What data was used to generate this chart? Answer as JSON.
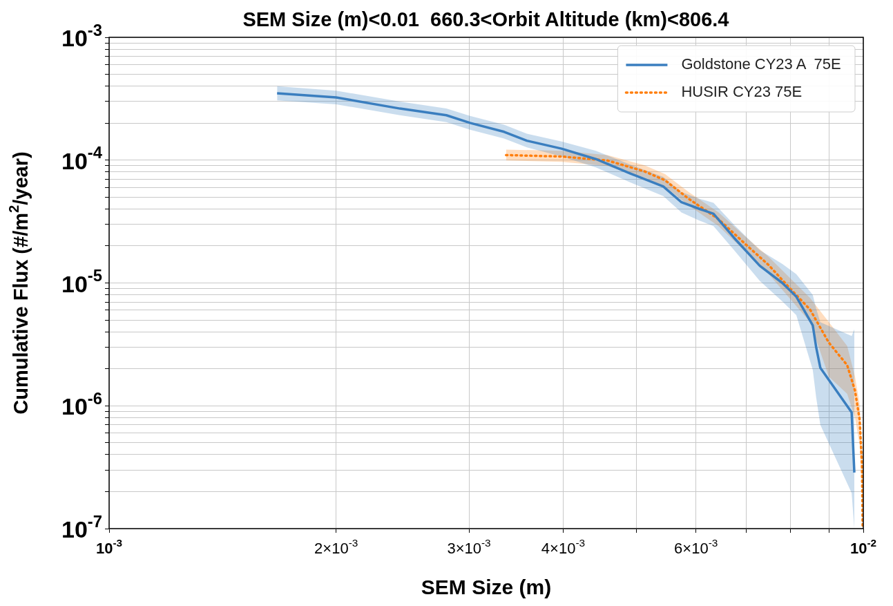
{
  "chart_data": {
    "type": "line",
    "title": "SEM Size (m)<0.01  660.3<Orbit Altitude (km)<806.4",
    "xlabel": "SEM Size (m)",
    "ylabel": "Cumulative Flux (#/m$^{2}$/year)",
    "log": "xy",
    "grid": true,
    "legend": "top right",
    "xlim": [
      0.001,
      0.01
    ],
    "ylim": [
      1e-07,
      0.001
    ],
    "xticks": [
      {
        "value": 0.001,
        "label": "10$^{-3}$"
      },
      {
        "value": 0.002,
        "label": "2×10$^{-3}$"
      },
      {
        "value": 0.003,
        "label": "3×10$^{-3}$"
      },
      {
        "value": 0.004,
        "label": "4×10$^{-3}$"
      },
      {
        "value": 0.005,
        "label": null
      },
      {
        "value": 0.006,
        "label": "6×10$^{-3}$"
      },
      {
        "value": 0.007,
        "label": null
      },
      {
        "value": 0.008,
        "label": null
      },
      {
        "value": 0.009,
        "label": null
      },
      {
        "value": 0.01,
        "label": "10$^{-2}$"
      }
    ],
    "yticks": [
      {
        "value": 1e-07,
        "label": "10$^{-7}$"
      },
      {
        "value": 2e-07,
        "label": null
      },
      {
        "value": 3e-07,
        "label": null
      },
      {
        "value": 4e-07,
        "label": null
      },
      {
        "value": 5e-07,
        "label": null
      },
      {
        "value": 6e-07,
        "label": null
      },
      {
        "value": 7e-07,
        "label": null
      },
      {
        "value": 8e-07,
        "label": null
      },
      {
        "value": 9e-07,
        "label": null
      },
      {
        "value": 1e-06,
        "label": "10$^{-6}$"
      },
      {
        "value": 2e-06,
        "label": null
      },
      {
        "value": 3e-06,
        "label": null
      },
      {
        "value": 4e-06,
        "label": null
      },
      {
        "value": 5e-06,
        "label": null
      },
      {
        "value": 6e-06,
        "label": null
      },
      {
        "value": 7e-06,
        "label": null
      },
      {
        "value": 8e-06,
        "label": null
      },
      {
        "value": 9e-06,
        "label": null
      },
      {
        "value": 1e-05,
        "label": "10$^{-5}$"
      },
      {
        "value": 2e-05,
        "label": null
      },
      {
        "value": 3e-05,
        "label": null
      },
      {
        "value": 4e-05,
        "label": null
      },
      {
        "value": 5e-05,
        "label": null
      },
      {
        "value": 6e-05,
        "label": null
      },
      {
        "value": 7e-05,
        "label": null
      },
      {
        "value": 8e-05,
        "label": null
      },
      {
        "value": 9e-05,
        "label": null
      },
      {
        "value": 0.0001,
        "label": "10$^{-4}$"
      },
      {
        "value": 0.0002,
        "label": null
      },
      {
        "value": 0.0003,
        "label": null
      },
      {
        "value": 0.0004,
        "label": null
      },
      {
        "value": 0.0005,
        "label": null
      },
      {
        "value": 0.0006,
        "label": null
      },
      {
        "value": 0.0007,
        "label": null
      },
      {
        "value": 0.0008,
        "label": null
      },
      {
        "value": 0.0009,
        "label": null
      },
      {
        "value": 0.001,
        "label": "10$^{-3}$"
      }
    ],
    "series": [
      {
        "name": "Goldstone CY23 A  75E",
        "color": "#3a7ebf",
        "line_style": "solid",
        "x": [
          0.00167,
          0.002,
          0.00243,
          0.0028,
          0.00301,
          0.00334,
          0.00358,
          0.00398,
          0.00442,
          0.00491,
          0.00543,
          0.00574,
          0.00607,
          0.00633,
          0.00674,
          0.00729,
          0.00781,
          0.00815,
          0.00857,
          0.00866,
          0.00877,
          0.00965,
          0.00973
        ],
        "values": [
          0.00035,
          0.000324,
          0.000263,
          0.000232,
          0.000201,
          0.00017,
          0.000144,
          0.000124,
          0.000102,
          7.79e-05,
          6.1e-05,
          4.54e-05,
          4e-05,
          3.66e-05,
          2.33e-05,
          1.38e-05,
          1e-05,
          7.74e-06,
          4.52e-06,
          2.99e-06,
          2.04e-06,
          8.85e-07,
          2.86e-07
        ],
        "upper": [
          0.0004,
          0.000368,
          0.0003,
          0.000263,
          0.000229,
          0.000194,
          0.000164,
          0.000142,
          0.000119,
          9.2e-05,
          7.3e-05,
          5.5e-05,
          4.84e-05,
          4.49e-05,
          2.98e-05,
          1.85e-05,
          1.43e-05,
          1.18e-05,
          8e-06,
          6.2e-06,
          4.8e-06,
          3.7e-06,
          4.2e-06
        ],
        "lower": [
          0.000307,
          0.000285,
          0.000232,
          0.000204,
          0.000177,
          0.00015,
          0.000127,
          0.000107,
          8.74e-05,
          6.59e-05,
          5.1e-05,
          3.75e-05,
          3.21e-05,
          2.9e-05,
          1.85e-05,
          1.04e-05,
          7.08e-06,
          5.47e-06,
          1.96e-06,
          1.17e-06,
          7e-07,
          1.95e-07,
          1e-07
        ]
      },
      {
        "name": "HUSIR CY23 75E",
        "color": "#ff7f0e",
        "line_style": "dotted",
        "x": [
          0.00336,
          0.00398,
          0.00458,
          0.00513,
          0.00546,
          0.00587,
          0.00643,
          0.00699,
          0.00749,
          0.00798,
          0.0085,
          0.009,
          0.00952,
          0.00975,
          0.00989,
          0.00996,
          0.00998
        ],
        "values": [
          0.00011,
          0.000107,
          9.93e-05,
          8.09e-05,
          6.85e-05,
          4.84e-05,
          3.3e-05,
          2.05e-05,
          1.4e-05,
          9.14e-06,
          6.07e-06,
          3.27e-06,
          2.14e-06,
          1.33e-06,
          7.69e-07,
          3.26e-07,
          1e-07
        ],
        "upper": [
          0.000122,
          0.000119,
          0.00011,
          9.08e-05,
          7.69e-05,
          5.5e-05,
          3.75e-05,
          2.36e-05,
          1.63e-05,
          1.11e-05,
          7.54e-06,
          4.81e-06,
          3.07e-06,
          1.73e-06,
          1.03e-06,
          4.2e-07,
          1.24e-07
        ],
        "lower": [
          9.93e-05,
          9.68e-05,
          8.97e-05,
          7.21e-05,
          6.1e-05,
          4.26e-05,
          2.9e-05,
          1.78e-05,
          1.18e-05,
          7.54e-06,
          4.81e-06,
          1.73e-06,
          1.25e-06,
          8e-07,
          4.79e-07,
          1.95e-07,
          1e-07
        ]
      }
    ]
  }
}
